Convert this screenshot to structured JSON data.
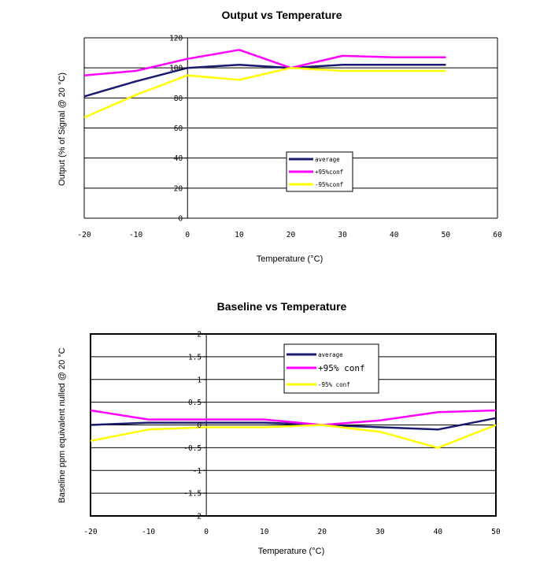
{
  "colors": {
    "average": "#1a1a6e",
    "plus95": "#ff00ff",
    "minus95": "#ffff00",
    "grid": "#000000"
  },
  "chart_data": [
    {
      "type": "line",
      "title": "Output vs Temperature",
      "xlabel": "Temperature (°C)",
      "ylabel": "Output (% of Signal @ 20 °C)",
      "xlim": [
        -20,
        60
      ],
      "ylim": [
        0,
        120
      ],
      "xticks": [
        -20,
        -10,
        0,
        10,
        20,
        30,
        40,
        50,
        60
      ],
      "yticks": [
        0,
        20,
        40,
        60,
        80,
        100,
        120
      ],
      "grid": "horizontal",
      "legend": [
        "average",
        "+95%conf",
        "-95%conf"
      ],
      "series": [
        {
          "name": "average",
          "color_key": "average",
          "x": [
            -20,
            -10,
            0,
            10,
            20,
            30,
            40,
            50
          ],
          "values": [
            81,
            91,
            100,
            102,
            100,
            102,
            102,
            102
          ]
        },
        {
          "name": "+95%conf",
          "color_key": "plus95",
          "x": [
            -20,
            -10,
            0,
            10,
            20,
            30,
            40,
            50
          ],
          "values": [
            95,
            98,
            106,
            112,
            100,
            108,
            107,
            107
          ]
        },
        {
          "name": "-95%conf",
          "color_key": "minus95",
          "x": [
            -20,
            -10,
            0,
            10,
            20,
            30,
            40,
            50
          ],
          "values": [
            67,
            82,
            95,
            92,
            100,
            98,
            98,
            98
          ]
        }
      ]
    },
    {
      "type": "line",
      "title": "Baseline vs Temperature",
      "xlabel": "Temperature (°C)",
      "ylabel": "Baseline ppm equivalent nulled @ 20 °C",
      "xlim": [
        -20,
        50
      ],
      "ylim": [
        -2,
        2
      ],
      "xticks": [
        -20,
        -10,
        0,
        10,
        20,
        30,
        40,
        50
      ],
      "yticks": [
        -2,
        -1.5,
        -1,
        -0.5,
        0,
        0.5,
        1,
        1.5,
        2
      ],
      "ytick_labels": [
        "-2",
        "-1.5",
        "-1",
        "-0.5",
        "0",
        "0.5",
        "1",
        "1.5",
        "2"
      ],
      "grid": "horizontal",
      "legend": [
        "average",
        "+95% conf",
        "-95% conf"
      ],
      "series": [
        {
          "name": "average",
          "color_key": "average",
          "x": [
            -20,
            -10,
            0,
            10,
            20,
            30,
            40,
            50
          ],
          "values": [
            0,
            0.05,
            0.05,
            0.05,
            0,
            -0.05,
            -0.1,
            0.15
          ]
        },
        {
          "name": "+95% conf",
          "color_key": "plus95",
          "x": [
            -20,
            -10,
            0,
            10,
            20,
            30,
            40,
            50
          ],
          "values": [
            0.32,
            0.12,
            0.12,
            0.12,
            0,
            0.1,
            0.28,
            0.32
          ]
        },
        {
          "name": "-95% conf",
          "color_key": "minus95",
          "x": [
            -20,
            -10,
            0,
            10,
            20,
            30,
            40,
            50
          ],
          "values": [
            -0.35,
            -0.1,
            -0.05,
            -0.05,
            0,
            -0.15,
            -0.5,
            0
          ]
        }
      ]
    }
  ]
}
